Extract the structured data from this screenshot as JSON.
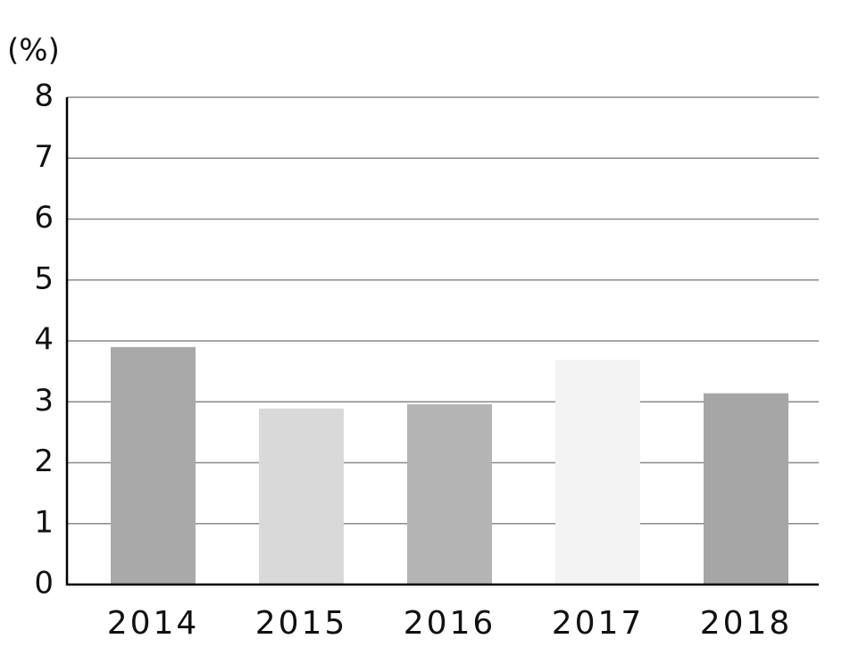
{
  "chart_data": {
    "type": "bar",
    "y_label": "(%)",
    "categories": [
      "2014",
      "2015",
      "2016",
      "2017",
      "2018"
    ],
    "values": [
      3.9,
      2.89,
      2.96,
      3.69,
      3.14
    ],
    "colors": [
      "#a9a9a9",
      "#d9d9d9",
      "#b4b4b4",
      "#f3f3f3",
      "#a6a6a6"
    ],
    "ylim": [
      0,
      8
    ],
    "yticks": [
      0,
      1,
      2,
      3,
      4,
      5,
      6,
      7,
      8
    ],
    "grid": true
  }
}
